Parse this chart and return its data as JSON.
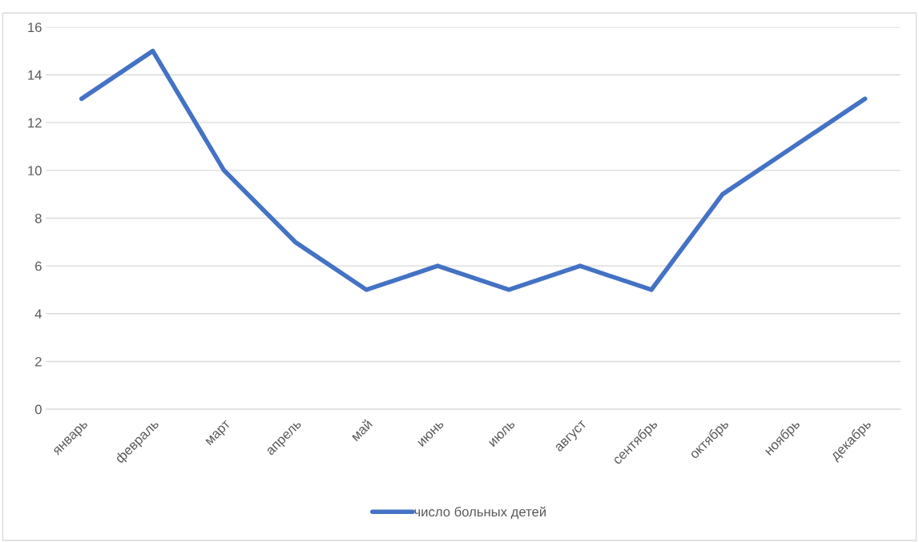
{
  "chart_data": {
    "type": "line",
    "categories": [
      "январь",
      "февраль",
      "март",
      "апрель",
      "май",
      "июнь",
      "июль",
      "август",
      "сентябрь",
      "октябрь",
      "ноябрь",
      "декабрь"
    ],
    "series": [
      {
        "name": "число больных детей",
        "color": "#4472c4",
        "values": [
          13,
          15,
          10,
          7,
          5,
          6,
          5,
          6,
          5,
          9,
          11,
          13
        ]
      }
    ],
    "ylim": [
      0,
      16
    ],
    "yticks": [
      0,
      2,
      4,
      6,
      8,
      10,
      12,
      14,
      16
    ],
    "grid": "y",
    "legend": "bottom",
    "marker": "none",
    "line_style": "solid"
  }
}
